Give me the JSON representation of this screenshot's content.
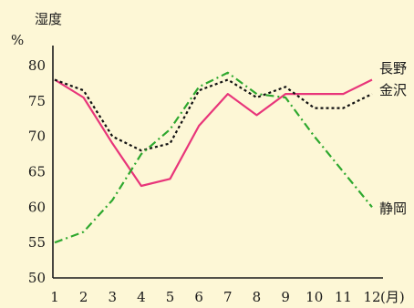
{
  "chart_data": {
    "type": "line",
    "ylabel": "湿度",
    "yunit": "%",
    "xunit": "(月)",
    "x": [
      1,
      2,
      3,
      4,
      5,
      6,
      7,
      8,
      9,
      10,
      11,
      12
    ],
    "x_tick_labels": [
      "1",
      "2",
      "3",
      "4",
      "5",
      "6",
      "7",
      "8",
      "9",
      "10",
      "11",
      "12"
    ],
    "ylim": [
      50,
      80
    ],
    "y_ticks": [
      50,
      55,
      60,
      65,
      70,
      75,
      80
    ],
    "y_tick_labels": [
      "50",
      "55",
      "60",
      "65",
      "70",
      "75",
      "80"
    ],
    "grid": false,
    "series": [
      {
        "name": "長野",
        "color": "#e8357a",
        "dash": "solid",
        "values": [
          78,
          75.5,
          69,
          63,
          64,
          71.5,
          76,
          73,
          76,
          76,
          76,
          78
        ]
      },
      {
        "name": "金沢",
        "color": "#111111",
        "dash": "dotted",
        "values": [
          78,
          76.5,
          70,
          68,
          69,
          76.5,
          78,
          75.5,
          77,
          74,
          74,
          76
        ]
      },
      {
        "name": "静岡",
        "color": "#2ea82e",
        "dash": "dashdot",
        "values": [
          55,
          56.5,
          61,
          67.5,
          71,
          77,
          79,
          76,
          75.5,
          70,
          65,
          60
        ]
      }
    ]
  }
}
